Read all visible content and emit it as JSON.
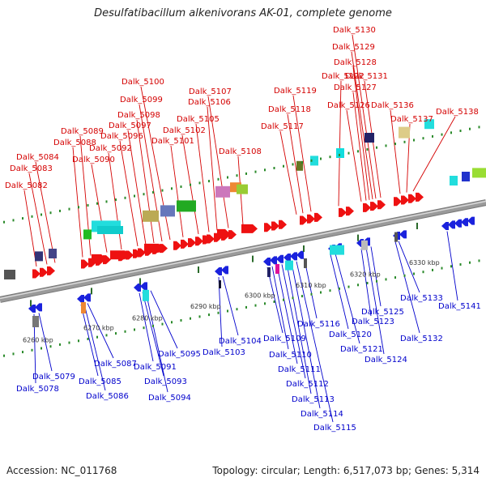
{
  "title": "Desulfatibacillum alkenivorans AK-01, complete genome",
  "footer": {
    "accession": "Accession: NC_011768",
    "topology": "Topology: circular",
    "length": "Length: 6,517,073 bp",
    "genes": "Genes: 5,314"
  },
  "colors": {
    "forward_label": "#d40000",
    "reverse_label": "#0000cc",
    "forward_gene": "#ee1111",
    "reverse_gene": "#1a22dd",
    "backbone": "#9a9a9a",
    "tick": "#2a8a2a"
  },
  "scale_ticks": [
    "6260 kbp",
    "6270 kbp",
    "6280 kbp",
    "6290 kbp",
    "6300 kbp",
    "6310 kbp",
    "6320 kbp",
    "6330 kbp"
  ],
  "forward_genes": [
    "Dalk_5082",
    "Dalk_5083",
    "Dalk_5084",
    "Dalk_5088",
    "Dalk_5089",
    "Dalk_5090",
    "Dalk_5092",
    "Dalk_5096",
    "Dalk_5097",
    "Dalk_5098",
    "Dalk_5099",
    "Dalk_5100",
    "Dalk_5101",
    "Dalk_5102",
    "Dalk_5105",
    "Dalk_5106",
    "Dalk_5107",
    "Dalk_5108",
    "Dalk_5117",
    "Dalk_5118",
    "Dalk_5119",
    "Dalk_5122",
    "Dalk_5126",
    "Dalk_5127",
    "Dalk_5128",
    "Dalk_5129",
    "Dalk_5130",
    "Dalk_5131",
    "Dalk_5136",
    "Dalk_5137",
    "Dalk_5138"
  ],
  "reverse_genes": [
    "Dalk_5078",
    "Dalk_5079",
    "Dalk_5085",
    "Dalk_5086",
    "Dalk_5087",
    "Dalk_5091",
    "Dalk_5093",
    "Dalk_5094",
    "Dalk_5095",
    "Dalk_5103",
    "Dalk_5104",
    "Dalk_5109",
    "Dalk_5110",
    "Dalk_5111",
    "Dalk_5112",
    "Dalk_5113",
    "Dalk_5114",
    "Dalk_5115",
    "Dalk_5116",
    "Dalk_5120",
    "Dalk_5121",
    "Dalk_5123",
    "Dalk_5124",
    "Dalk_5125",
    "Dalk_5132",
    "Dalk_5133",
    "Dalk_5141"
  ]
}
